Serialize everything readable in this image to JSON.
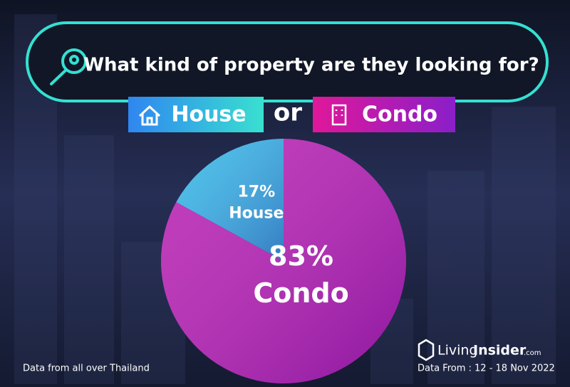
{
  "chart_data": {
    "type": "pie",
    "title": "What kind of property are they looking for?",
    "categories": [
      "House",
      "Condo"
    ],
    "values": [
      17,
      83
    ],
    "value_labels": [
      "17%",
      "83%"
    ],
    "colors": [
      "#2fb8e6",
      "#b81aaf"
    ],
    "connector": "or"
  },
  "footer_note": "Data from all over Thailand",
  "brand": {
    "name_light": "Living",
    "name_bold": "Insider",
    "suffix": ".com"
  },
  "date_range": "Data From : 12 - 18 Nov 2022"
}
